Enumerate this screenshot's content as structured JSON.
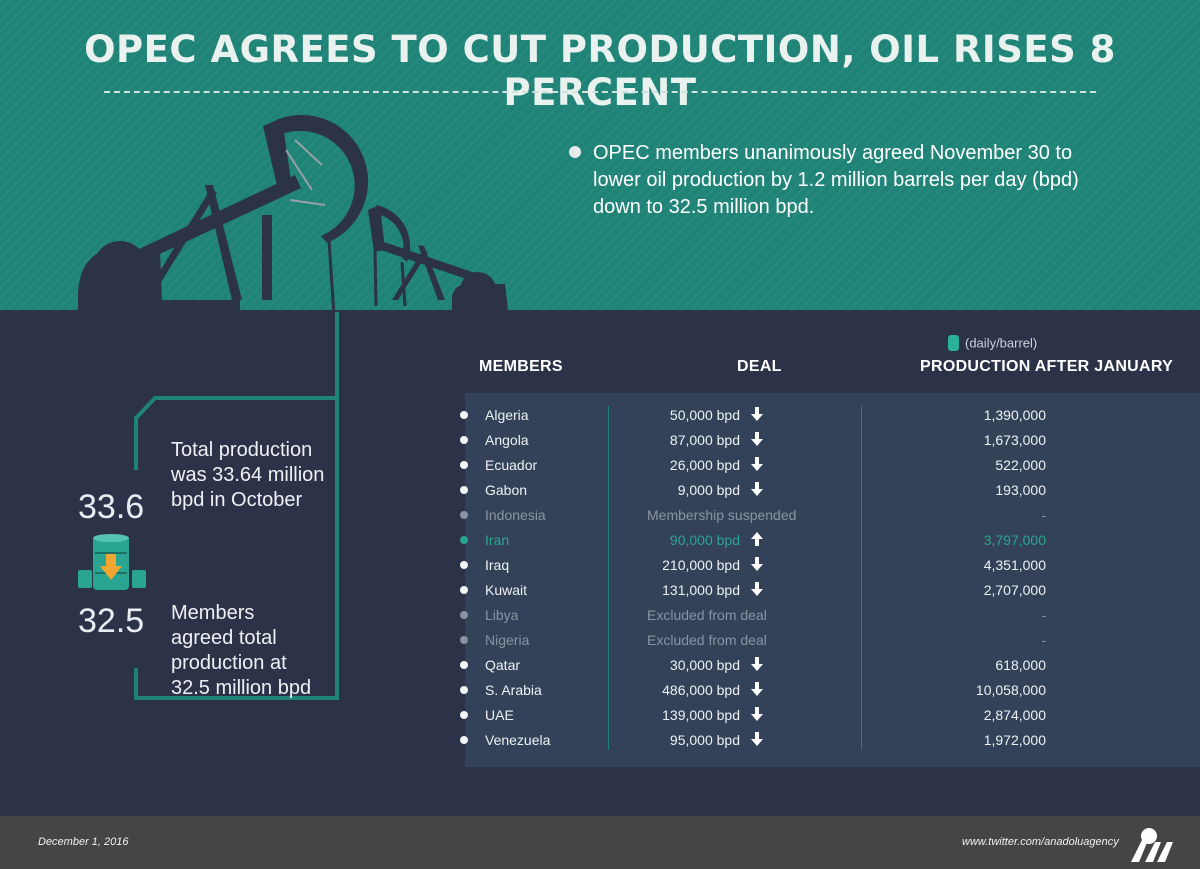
{
  "header": {
    "title": "OPEC AGREES TO CUT PRODUCTION, OIL RISES 8 PERCENT",
    "intro": "OPEC members unanimously agreed November 30 to lower oil production by 1.2 million barrels per day (bpd) down to 32.5 million bpd."
  },
  "summary": {
    "before_value": "33.6",
    "before_text": "Total production was 33.64 million bpd in October",
    "after_value": "32.5",
    "after_text": "Members agreed total production at 32.5 million bpd"
  },
  "table": {
    "col_members": "MEMBERS",
    "col_deal": "DEAL",
    "col_production": "PRODUCTION AFTER JANUARY",
    "unit": "(daily/barrel)",
    "rows": [
      {
        "name": "Algeria",
        "deal": "50,000 bpd",
        "direction": "down",
        "production": "1,390,000",
        "status": "normal"
      },
      {
        "name": "Angola",
        "deal": "87,000 bpd",
        "direction": "down",
        "production": "1,673,000",
        "status": "normal"
      },
      {
        "name": "Ecuador",
        "deal": "26,000 bpd",
        "direction": "down",
        "production": "522,000",
        "status": "normal"
      },
      {
        "name": "Gabon",
        "deal": "9,000 bpd",
        "direction": "down",
        "production": "193,000",
        "status": "normal"
      },
      {
        "name": "Indonesia",
        "deal": "Membership suspended",
        "direction": "",
        "production": "-",
        "status": "muted"
      },
      {
        "name": "Iran",
        "deal": "90,000 bpd",
        "direction": "up",
        "production": "3,797,000",
        "status": "highlight"
      },
      {
        "name": "Iraq",
        "deal": "210,000 bpd",
        "direction": "down",
        "production": "4,351,000",
        "status": "normal"
      },
      {
        "name": "Kuwait",
        "deal": "131,000 bpd",
        "direction": "down",
        "production": "2,707,000",
        "status": "normal"
      },
      {
        "name": "Libya",
        "deal": "Excluded from deal",
        "direction": "",
        "production": "-",
        "status": "muted"
      },
      {
        "name": "Nigeria",
        "deal": "Excluded from deal",
        "direction": "",
        "production": "-",
        "status": "muted"
      },
      {
        "name": "Qatar",
        "deal": "30,000 bpd",
        "direction": "down",
        "production": "618,000",
        "status": "normal"
      },
      {
        "name": "S. Arabia",
        "deal": "486,000 bpd",
        "direction": "down",
        "production": "10,058,000",
        "status": "normal"
      },
      {
        "name": "UAE",
        "deal": "139,000 bpd",
        "direction": "down",
        "production": "2,874,000",
        "status": "normal"
      },
      {
        "name": "Venezuela",
        "deal": "95,000 bpd",
        "direction": "down",
        "production": "1,972,000",
        "status": "normal"
      }
    ]
  },
  "footer": {
    "date": "December 1, 2016",
    "link": "www.twitter.com/anadoluagency",
    "logo_text": "AA"
  },
  "colors": {
    "teal_background": "#1f8477",
    "navy_background": "#2c3348",
    "highlight": "#2aa592",
    "arrow_orange": "#f2a733",
    "footer": "#454545"
  }
}
